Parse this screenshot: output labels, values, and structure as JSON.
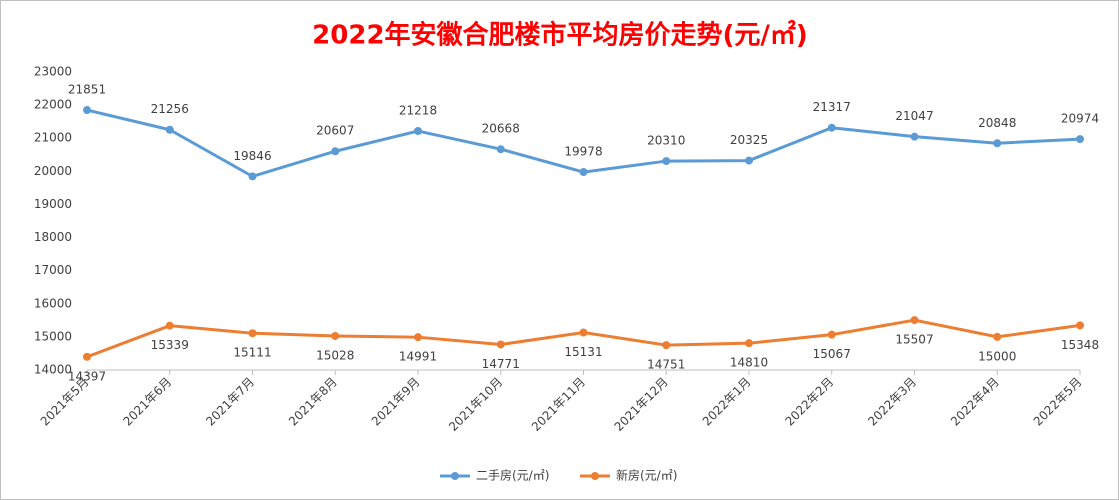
{
  "chart_data": {
    "type": "line",
    "title": "2022年安徽合肥楼市平均房价走势(元/㎡)",
    "categories": [
      "2021年5月",
      "2021年6月",
      "2021年7月",
      "2021年8月",
      "2021年9月",
      "2021年10月",
      "2021年11月",
      "2021年12月",
      "2022年1月",
      "2022年2月",
      "2022年3月",
      "2022年4月",
      "2022年5月"
    ],
    "series": [
      {
        "name": "二手房(元/㎡)",
        "color": "#5b9bd5",
        "values": [
          21851,
          21256,
          19846,
          20607,
          21218,
          20668,
          19978,
          20310,
          20325,
          21317,
          21047,
          20848,
          20974
        ]
      },
      {
        "name": "新房(元/㎡)",
        "color": "#ed7d31",
        "values": [
          14397,
          15339,
          15111,
          15028,
          14991,
          14771,
          15131,
          14751,
          14810,
          15067,
          15507,
          15000,
          15348
        ]
      }
    ],
    "ylim": [
      14000,
      23000
    ],
    "yticks": [
      14000,
      15000,
      16000,
      17000,
      18000,
      19000,
      20000,
      21000,
      22000,
      23000
    ],
    "grid": false,
    "legend": "bottom"
  }
}
